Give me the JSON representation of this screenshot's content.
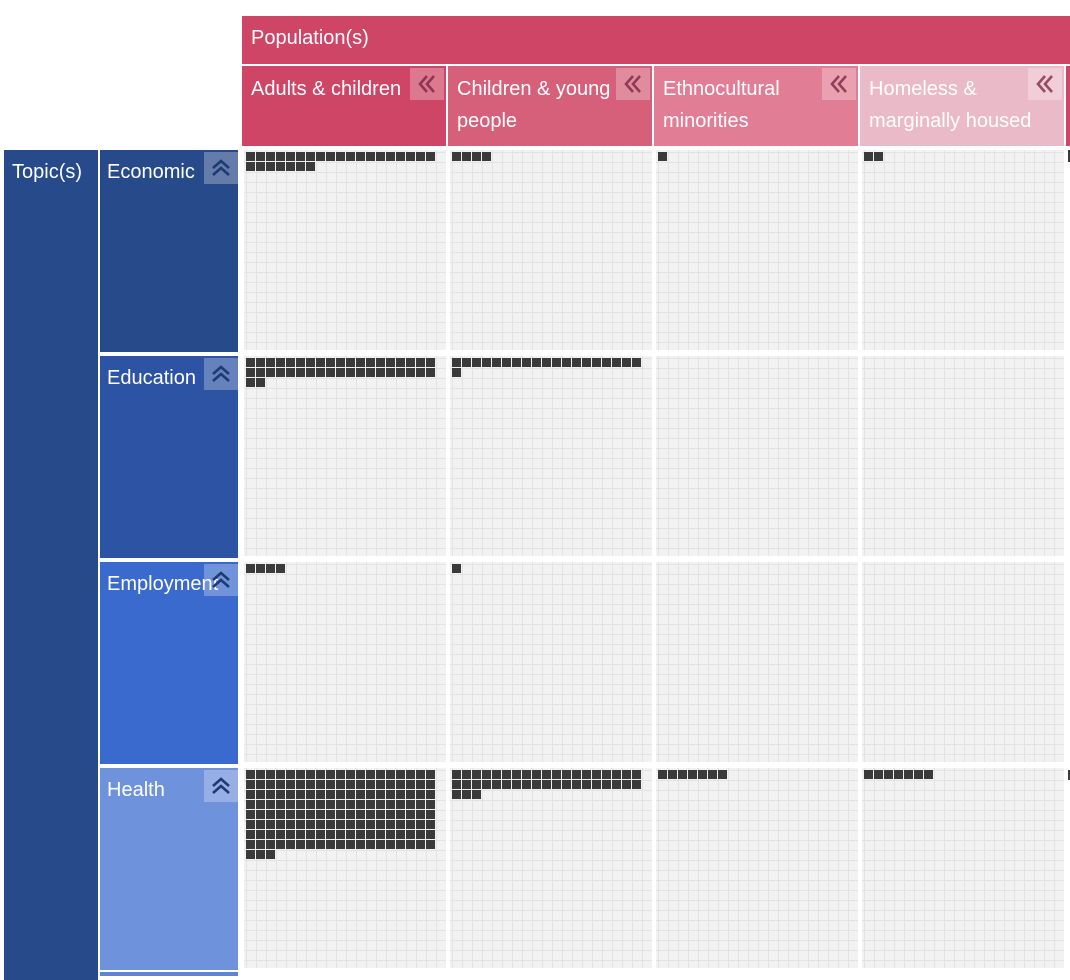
{
  "population_header": {
    "label": "Population(s)"
  },
  "populations": [
    {
      "label": "Adults & children",
      "color": "#cf4565"
    },
    {
      "label": "Children & young people",
      "color": "#d66079"
    },
    {
      "label": "Ethnocultural minorities",
      "color": "#e17d95"
    },
    {
      "label": "Homeless & marginally housed",
      "color": "#ebbac8"
    }
  ],
  "topic_header": {
    "label": "Topic(s)",
    "color": "#274a8a"
  },
  "topics": [
    {
      "label": "Economic",
      "color": "#274a8a"
    },
    {
      "label": "Education",
      "color": "#2c53a4"
    },
    {
      "label": "Employment",
      "color": "#3a6acd"
    },
    {
      "label": "Health",
      "color": "#6e92dc"
    }
  ],
  "icons": {
    "collapse_left": "double-chevron-left-icon",
    "collapse_up": "double-chevron-up-icon"
  },
  "cell_counts": [
    [
      26,
      4,
      1,
      2
    ],
    [
      40,
      20,
      0,
      0
    ],
    [
      4,
      1,
      0,
      0
    ],
    [
      155,
      41,
      7,
      7
    ]
  ]
}
